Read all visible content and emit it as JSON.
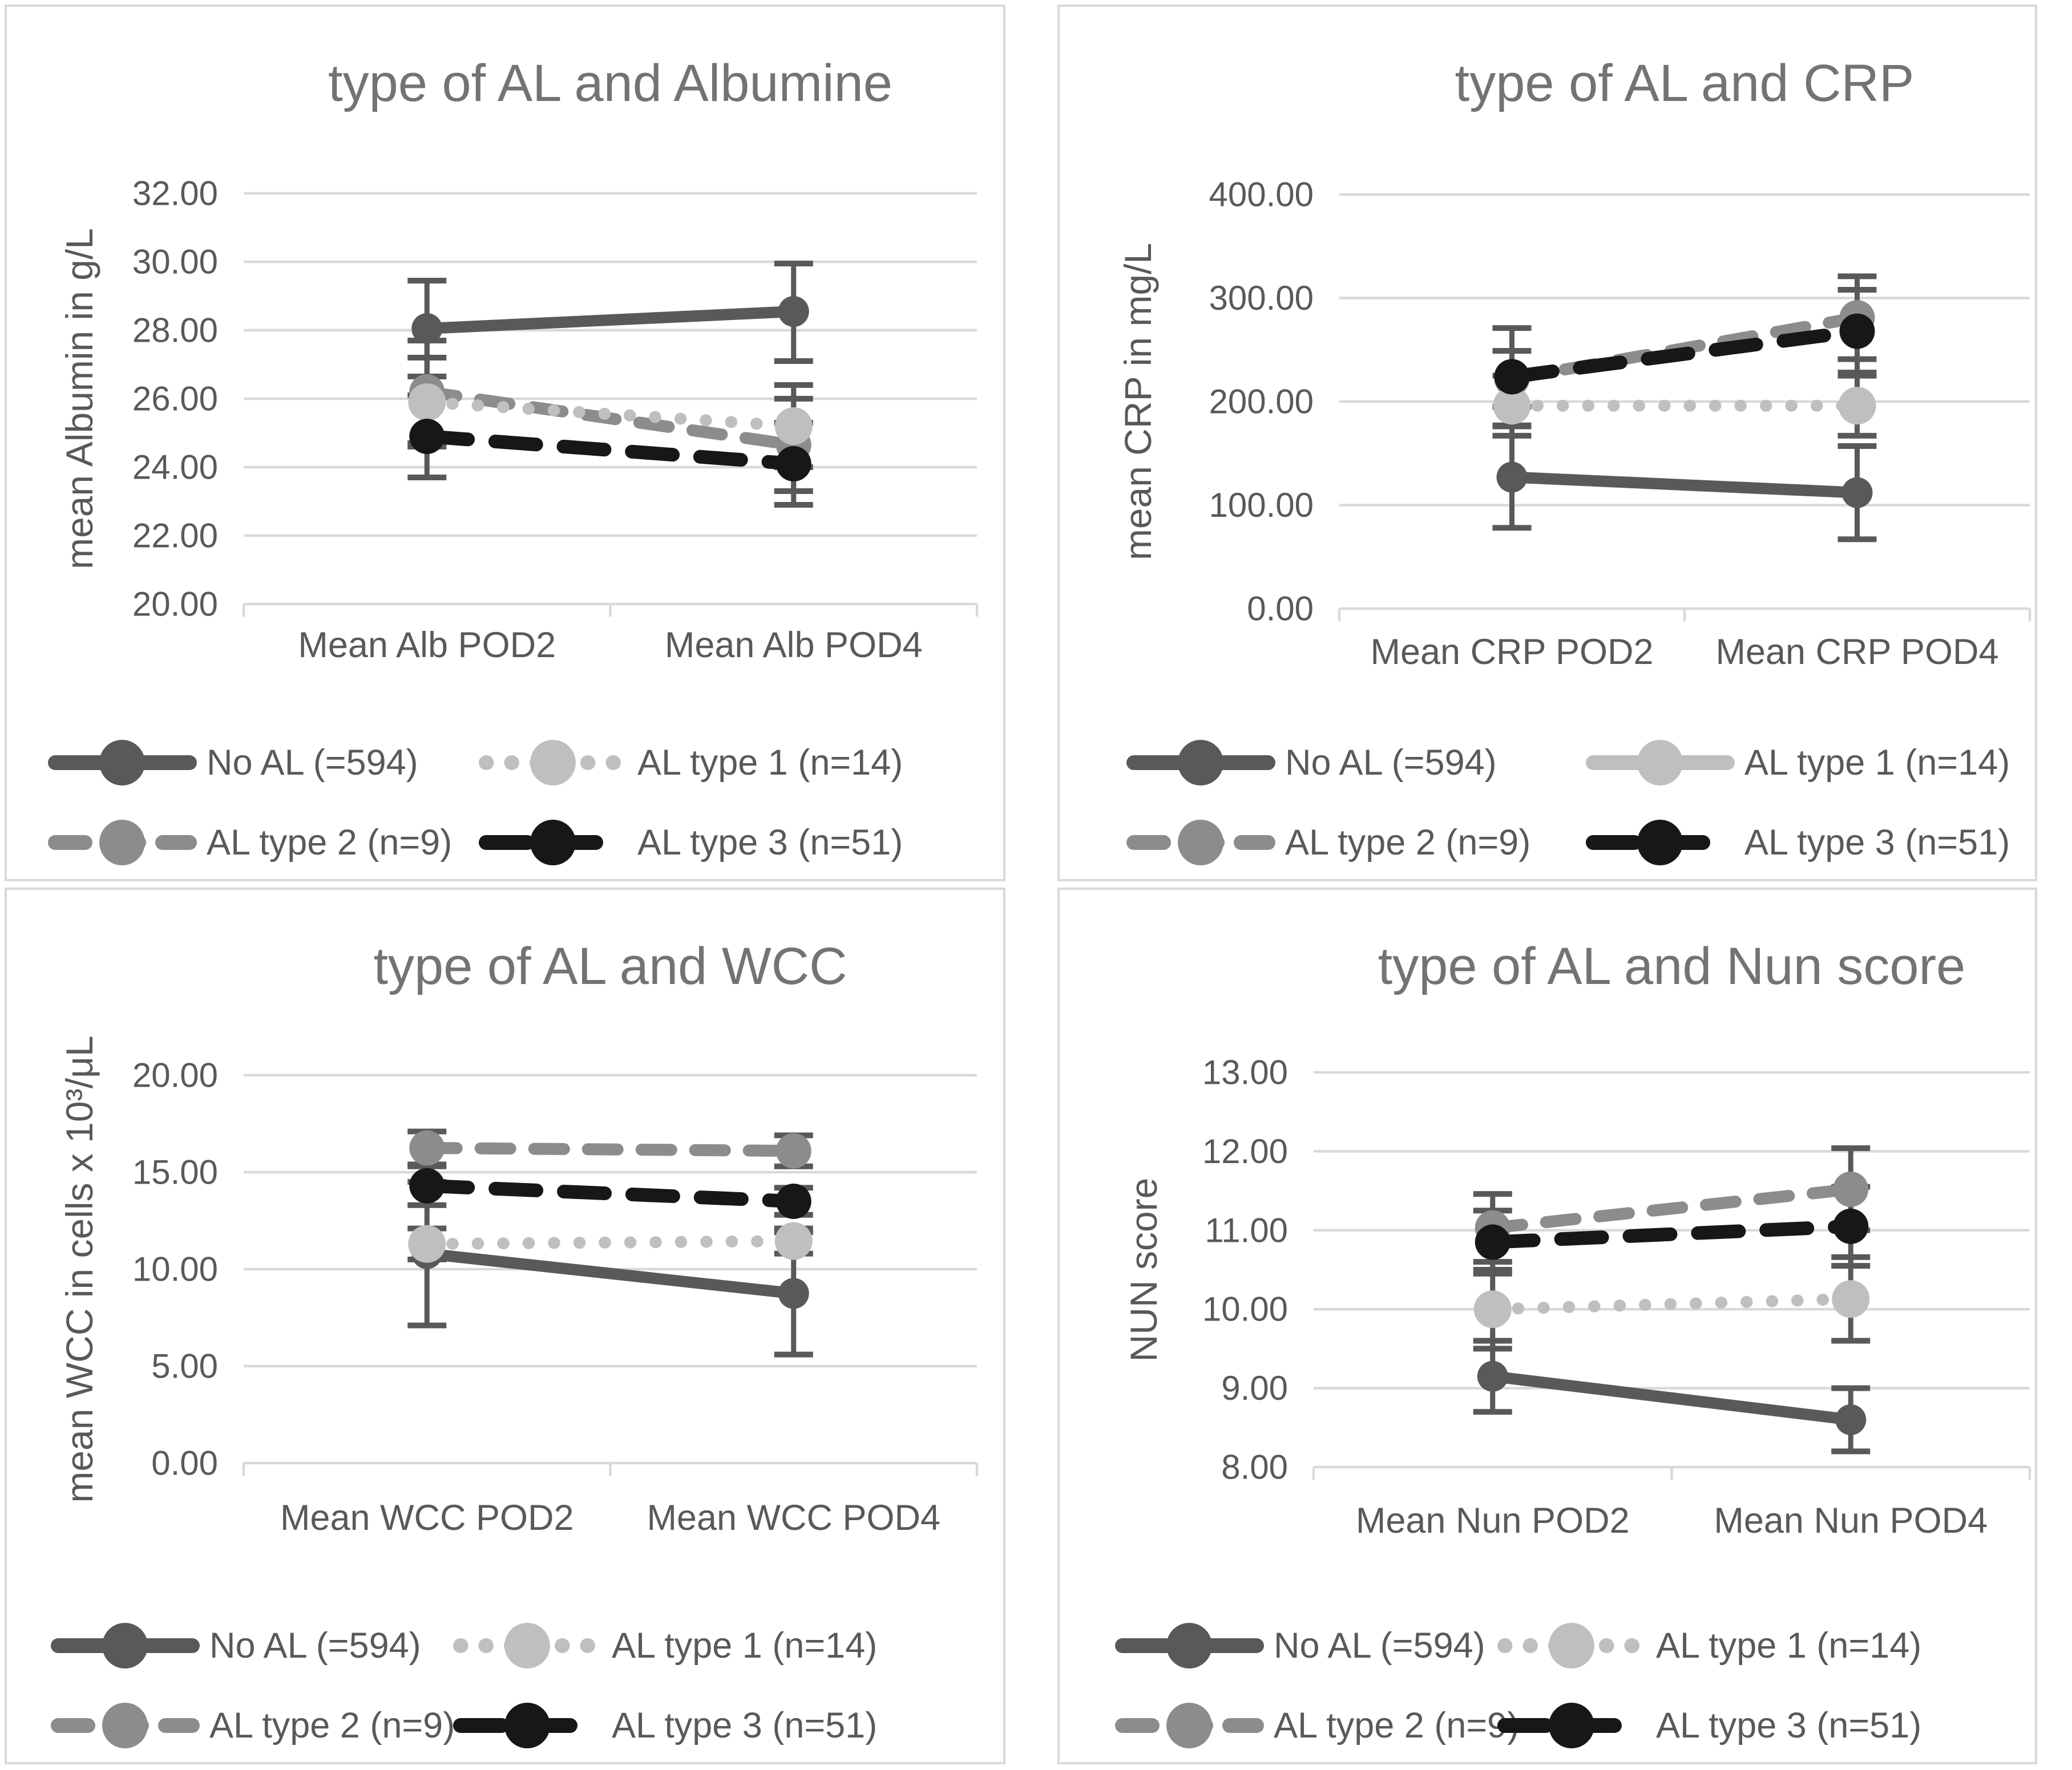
{
  "page": {
    "background": "#ffffff",
    "description": "2x2 grid of Excel-style line charts with error bars comparing AL types"
  },
  "colors": {
    "no_al": "#595959",
    "al1": "#bfbfbf",
    "al2": "#8c8c8c",
    "al3": "#171717",
    "gridline": "#d9d9d9",
    "panel_border": "#d9d9d9",
    "error_bar": "#595959",
    "axis_text": "#595959",
    "title_text": "#737373"
  },
  "legend_labels": [
    "No AL (=594)",
    "AL type 1 (n=14)",
    "AL type 2 (n=9)",
    "AL type 3 (n=51)"
  ],
  "chart_data": [
    {
      "id": "albumine",
      "type": "line",
      "title": "type of AL and Albumine",
      "ylabel": "mean Albumin in g/L",
      "categories": [
        "Mean Alb POD2",
        "Mean Alb POD4"
      ],
      "ylim": [
        20,
        32
      ],
      "ytick_step": 2,
      "yticks": [
        "32.00",
        "30.00",
        "28.00",
        "26.00",
        "24.00",
        "22.00",
        "20.00"
      ],
      "grid": true,
      "legend_position": "bottom",
      "series": [
        {
          "key": "no_al",
          "name": "No AL (=594)",
          "style": "solid",
          "values": [
            28.05,
            28.55
          ],
          "err_low": [
            26.65,
            27.1
          ],
          "err_high": [
            29.45,
            29.95
          ]
        },
        {
          "key": "al1",
          "name": "AL type 1 (n=14)",
          "style": "dotted",
          "values": [
            25.9,
            25.2
          ],
          "err_low": [
            24.6,
            24.0
          ],
          "err_high": [
            27.2,
            26.4
          ]
        },
        {
          "key": "al2",
          "name": "AL type 2 (n=9)",
          "style": "dashed",
          "values": [
            26.2,
            24.65
          ],
          "err_low": [
            24.7,
            23.3
          ],
          "err_high": [
            27.7,
            26.0
          ]
        },
        {
          "key": "al3",
          "name": "AL type 3 (n=51)",
          "style": "dashed-long",
          "values": [
            24.9,
            24.1
          ],
          "err_low": [
            23.7,
            22.9
          ],
          "err_high": [
            26.1,
            25.3
          ]
        }
      ]
    },
    {
      "id": "crp",
      "type": "line",
      "title": "type of AL and CRP",
      "ylabel": "mean CRP in mg/L",
      "categories": [
        "Mean CRP POD2",
        "Mean CRP POD4"
      ],
      "ylim": [
        0,
        400
      ],
      "ytick_step": 100,
      "yticks": [
        "400.00",
        "300.00",
        "200.00",
        "100.00",
        "0.00"
      ],
      "grid": true,
      "legend_position": "bottom",
      "legend_style_overrides": {
        "al1": "solid"
      },
      "series": [
        {
          "key": "no_al",
          "name": "No AL (=594)",
          "style": "solid",
          "values": [
            127,
            112
          ],
          "err_low": [
            78,
            67
          ],
          "err_high": [
            176,
            157
          ]
        },
        {
          "key": "al1",
          "name": "AL type 1 (n=14)",
          "style": "dotted",
          "values": [
            196,
            196
          ],
          "err_low": [
            167,
            167
          ],
          "err_high": [
            225,
            225
          ]
        },
        {
          "key": "al2",
          "name": "AL type 2 (n=9)",
          "style": "dashed",
          "values": [
            222,
            281
          ],
          "err_low": [
            195,
            241
          ],
          "err_high": [
            249,
            321
          ]
        },
        {
          "key": "al3",
          "name": "AL type 3 (n=51)",
          "style": "dashed-long",
          "values": [
            224,
            268
          ],
          "err_low": [
            177,
            228
          ],
          "err_high": [
            271,
            308
          ]
        }
      ]
    },
    {
      "id": "wcc",
      "type": "line",
      "title": "type of AL and WCC",
      "ylabel": "mean WCC in cells x 10³/μL",
      "categories": [
        "Mean WCC POD2",
        "Mean WCC POD4"
      ],
      "ylim": [
        0,
        20
      ],
      "ytick_step": 5,
      "yticks": [
        "20.00",
        "15.00",
        "10.00",
        "5.00",
        "0.00"
      ],
      "grid": true,
      "legend_position": "bottom",
      "series": [
        {
          "key": "no_al",
          "name": "No AL (=594)",
          "style": "solid",
          "values": [
            10.8,
            8.75
          ],
          "err_low": [
            7.1,
            5.6
          ],
          "err_high": [
            14.5,
            11.9
          ]
        },
        {
          "key": "al1",
          "name": "AL type 1 (n=14)",
          "style": "dotted",
          "values": [
            11.3,
            11.45
          ],
          "err_low": [
            10.5,
            10.8
          ],
          "err_high": [
            12.1,
            12.1
          ]
        },
        {
          "key": "al2",
          "name": "AL type 2 (n=9)",
          "style": "dashed",
          "values": [
            16.25,
            16.1
          ],
          "err_low": [
            15.4,
            15.3
          ],
          "err_high": [
            17.1,
            16.9
          ]
        },
        {
          "key": "al3",
          "name": "AL type 3 (n=51)",
          "style": "dashed-long",
          "values": [
            14.3,
            13.5
          ],
          "err_low": [
            13.3,
            12.8
          ],
          "err_high": [
            15.3,
            14.2
          ]
        }
      ]
    },
    {
      "id": "nun",
      "type": "line",
      "title": "type of AL and Nun score",
      "ylabel": "NUN score",
      "categories": [
        "Mean Nun POD2",
        "Mean Nun POD4"
      ],
      "ylim": [
        8,
        13
      ],
      "ytick_step": 1,
      "yticks": [
        "13.00",
        "12.00",
        "11.00",
        "10.00",
        "9.00",
        "8.00"
      ],
      "grid": true,
      "legend_position": "bottom",
      "series": [
        {
          "key": "no_al",
          "name": "No AL (=594)",
          "style": "solid",
          "values": [
            9.15,
            8.6
          ],
          "err_low": [
            8.7,
            8.2
          ],
          "err_high": [
            9.6,
            9.0
          ]
        },
        {
          "key": "al1",
          "name": "AL type 1 (n=14)",
          "style": "dotted",
          "values": [
            10.0,
            10.13
          ],
          "err_low": [
            9.5,
            9.6
          ],
          "err_high": [
            10.5,
            10.66
          ]
        },
        {
          "key": "al2",
          "name": "AL type 2 (n=9)",
          "style": "dashed",
          "values": [
            11.03,
            11.52
          ],
          "err_low": [
            10.6,
            11.0
          ],
          "err_high": [
            11.46,
            12.04
          ]
        },
        {
          "key": "al3",
          "name": "AL type 3 (n=51)",
          "style": "dashed-long",
          "values": [
            10.85,
            11.05
          ],
          "err_low": [
            10.45,
            10.55
          ],
          "err_high": [
            11.25,
            11.55
          ]
        }
      ]
    }
  ]
}
